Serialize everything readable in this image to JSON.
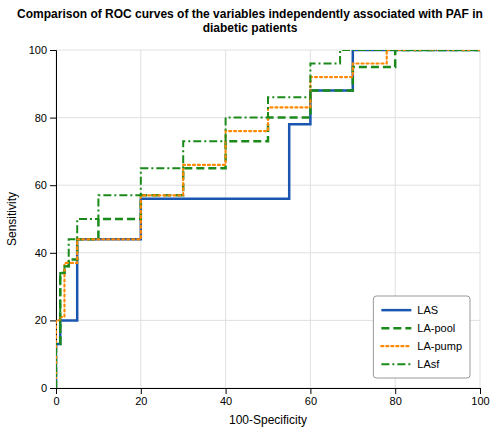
{
  "chart_data": {
    "type": "line",
    "title": "Comparison of ROC curves of the variables independently associated with PAF in diabetic patients",
    "x_label": "100-Specificity",
    "y_label": "Sensitivity",
    "xlim": [
      0,
      100
    ],
    "ylim": [
      0,
      100
    ],
    "xticks": [
      0,
      20,
      40,
      60,
      80,
      100
    ],
    "yticks": [
      0,
      20,
      40,
      60,
      80,
      100
    ],
    "grid": true,
    "legend": "lower right",
    "series": [
      {
        "name": "LAS",
        "color": "#1a56b0",
        "line_style": "solid",
        "x": [
          0,
          0,
          1,
          1,
          2,
          2,
          3,
          3,
          5,
          5,
          20,
          20,
          40,
          40,
          55,
          55,
          60,
          60,
          65,
          65,
          70,
          70,
          74,
          74,
          100
        ],
        "values": [
          0,
          13,
          13,
          20,
          20,
          20,
          20,
          20,
          20,
          44,
          44,
          56,
          56,
          56,
          56,
          78,
          78,
          88,
          88,
          88,
          88,
          100,
          100,
          100,
          100
        ]
      },
      {
        "name": "LA-pool",
        "color": "#1a8a1a",
        "line_style": "dashed",
        "x": [
          0,
          0,
          1,
          1,
          2,
          2,
          3,
          3,
          5,
          5,
          10,
          10,
          20,
          20,
          30,
          30,
          40,
          40,
          50,
          50,
          60,
          60,
          70,
          70,
          80,
          80,
          100
        ],
        "values": [
          0,
          13,
          13,
          34,
          34,
          36,
          36,
          38,
          38,
          44,
          44,
          50,
          50,
          57,
          57,
          65,
          65,
          73,
          73,
          80,
          80,
          88,
          88,
          95,
          95,
          100,
          100
        ]
      },
      {
        "name": "LA-pump",
        "color": "#ff8800",
        "line_style": "dotted",
        "x": [
          0,
          0,
          1,
          1,
          2,
          2,
          5,
          5,
          10,
          10,
          20,
          20,
          30,
          30,
          40,
          40,
          50,
          50,
          60,
          60,
          70,
          70,
          78,
          78,
          100
        ],
        "values": [
          0,
          20,
          20,
          21,
          21,
          37,
          37,
          44,
          44,
          44,
          44,
          57,
          57,
          66,
          66,
          76,
          76,
          83,
          83,
          92,
          92,
          96,
          96,
          100,
          100
        ]
      },
      {
        "name": "LAsf",
        "color": "#1a8a1a",
        "line_style": "dashdot",
        "x": [
          0,
          0,
          1,
          1,
          2,
          2,
          3,
          3,
          5,
          5,
          10,
          10,
          20,
          20,
          30,
          30,
          40,
          40,
          50,
          50,
          60,
          60,
          67,
          67,
          100
        ],
        "values": [
          0,
          13,
          13,
          34,
          34,
          36,
          36,
          44,
          44,
          50,
          50,
          57,
          57,
          65,
          65,
          73,
          73,
          80,
          80,
          86,
          86,
          96,
          96,
          100,
          100
        ]
      }
    ]
  }
}
